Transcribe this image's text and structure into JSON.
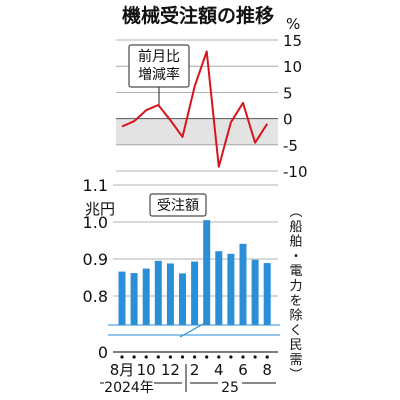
{
  "chart_data": [
    {
      "type": "line",
      "title": "機械受注額の推移",
      "unit_label": "%",
      "series_label_lines": [
        "前月比",
        "増減率"
      ],
      "yticks": [
        "15",
        "10",
        "5",
        "0",
        "-5",
        "-10"
      ],
      "ylim": [
        -10,
        15
      ],
      "negative_band": [
        -5,
        0
      ],
      "x": [
        "2024-08",
        "2024-09",
        "2024-10",
        "2024-11",
        "2024-12",
        "2025-01",
        "2025-02",
        "2025-03",
        "2025-04",
        "2025-05",
        "2025-06",
        "2025-07",
        "2025-08"
      ],
      "values": [
        -1.5,
        -0.5,
        1.6,
        2.6,
        -0.3,
        -3.5,
        6.1,
        12.8,
        -9.2,
        -0.7,
        3.0,
        -4.6,
        -1.0
      ],
      "line_color": "#d7141d",
      "band_color": "#e3e3e3"
    },
    {
      "type": "bar",
      "series_label": "受注額",
      "unit_label": "兆円",
      "yticks": [
        "1.1",
        "1.0",
        "0.9",
        "0.8",
        "0"
      ],
      "ylim": [
        0.7,
        1.1
      ],
      "axis_break": true,
      "x": [
        "2024-08",
        "2024-09",
        "2024-10",
        "2024-11",
        "2024-12",
        "2025-01",
        "2025-02",
        "2025-03",
        "2025-04",
        "2025-05",
        "2025-06",
        "2025-07",
        "2025-08"
      ],
      "values": [
        0.866,
        0.862,
        0.874,
        0.895,
        0.888,
        0.861,
        0.893,
        1.005,
        0.921,
        0.914,
        0.941,
        0.898,
        0.889
      ],
      "bar_color": "#2a8fd6",
      "x_tick_labels": [
        "8月",
        "",
        "10",
        "",
        "12",
        "",
        "2",
        "",
        "4",
        "",
        "6",
        "",
        "8"
      ],
      "year_labels": [
        "2024年",
        "25"
      ],
      "side_note": "（船舶・電力を除く民需）"
    }
  ]
}
